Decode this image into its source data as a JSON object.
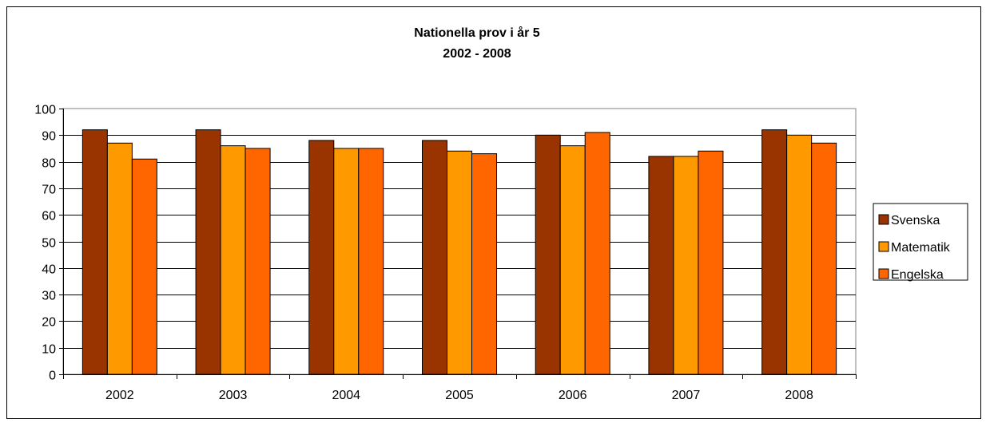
{
  "chart_data": {
    "type": "bar",
    "title": [
      "Nationella prov i år 5",
      "2002 - 2008"
    ],
    "categories": [
      "2002",
      "2003",
      "2004",
      "2005",
      "2006",
      "2007",
      "2008"
    ],
    "series": [
      {
        "name": "Svenska",
        "color": "#993300",
        "values": [
          92,
          92,
          88,
          88,
          90,
          82,
          92
        ]
      },
      {
        "name": "Matematik",
        "color": "#ff9900",
        "values": [
          87,
          86,
          85,
          84,
          86,
          82,
          90
        ]
      },
      {
        "name": "Engelska",
        "color": "#ff6600",
        "values": [
          81,
          85,
          85,
          83,
          91,
          84,
          87
        ]
      }
    ],
    "ylim": [
      0,
      100
    ],
    "yticks": [
      "0",
      "10",
      "20",
      "30",
      "40",
      "50",
      "60",
      "70",
      "80",
      "90",
      "100"
    ],
    "grid": true,
    "legend": "right"
  }
}
